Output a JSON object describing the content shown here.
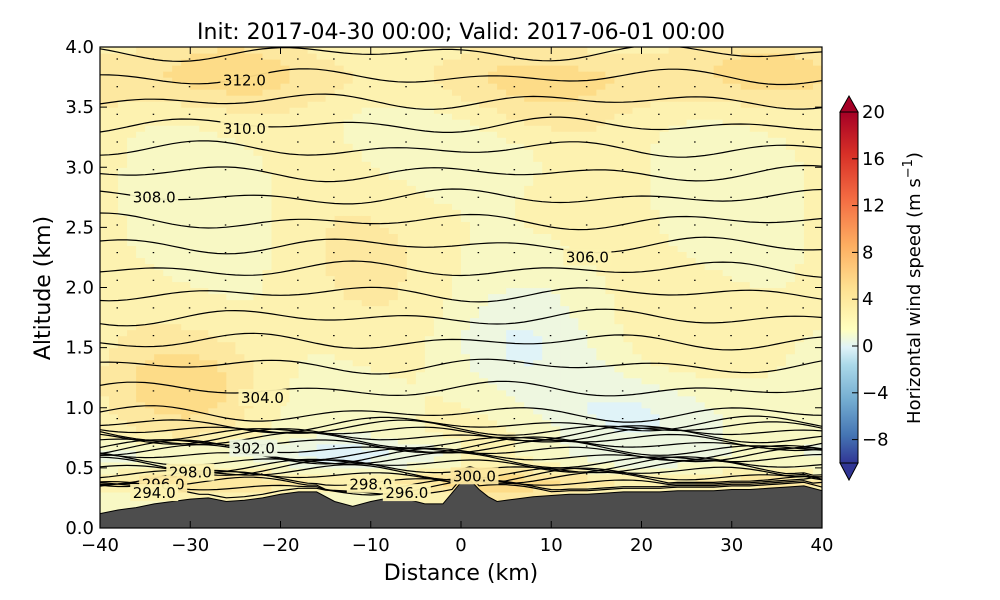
{
  "chart_data": {
    "type": "heatmap",
    "title": "Init: 2017-04-30 00:00; Valid: 2017-06-01 00:00",
    "xlabel": "Distance (km)",
    "ylabel": "Altitude (km)",
    "xlim": [
      -40,
      40
    ],
    "ylim": [
      0.0,
      4.0
    ],
    "x_ticks": [
      -40,
      -30,
      -20,
      -10,
      0,
      10,
      20,
      30,
      40
    ],
    "x_tick_labels": [
      "−40",
      "−30",
      "−20",
      "−10",
      "0",
      "10",
      "20",
      "30",
      "40"
    ],
    "y_ticks": [
      0.0,
      0.5,
      1.0,
      1.5,
      2.0,
      2.5,
      3.0,
      3.5,
      4.0
    ],
    "y_tick_labels": [
      "0.0",
      "0.5",
      "1.0",
      "1.5",
      "2.0",
      "2.5",
      "3.0",
      "3.5",
      "4.0"
    ],
    "colorbar": {
      "label": "Horizontal wind speed (m s",
      "label_exponent": "−1",
      "label_suffix": ")",
      "range": [
        -10,
        20
      ],
      "ticks": [
        20,
        16,
        12,
        8,
        4,
        0,
        -4,
        -8
      ],
      "tick_labels": [
        "20",
        "16",
        "12",
        "8",
        "4",
        "0",
        "−4",
        "−8"
      ],
      "colormap": "RdYlBu_r",
      "extend": "both"
    },
    "contour_labels": [
      {
        "text": "312.0",
        "x": -24,
        "y": 3.72
      },
      {
        "text": "310.0",
        "x": -24,
        "y": 3.32
      },
      {
        "text": "308.0",
        "x": -34,
        "y": 2.75
      },
      {
        "text": "306.0",
        "x": 14,
        "y": 2.25
      },
      {
        "text": "304.0",
        "x": -22,
        "y": 1.08
      },
      {
        "text": "302.0",
        "x": -23,
        "y": 0.66
      },
      {
        "text": "300.0",
        "x": 1.5,
        "y": 0.43
      },
      {
        "text": "298.0",
        "x": -30,
        "y": 0.46
      },
      {
        "text": "298.0",
        "x": -10,
        "y": 0.36
      },
      {
        "text": "296.0",
        "x": -33,
        "y": 0.36
      },
      {
        "text": "296.0",
        "x": -6,
        "y": 0.29
      },
      {
        "text": "294.0",
        "x": -34,
        "y": 0.29
      }
    ],
    "terrain": {
      "x": [
        -40,
        -38,
        -36,
        -34,
        -32,
        -30,
        -28,
        -26,
        -24,
        -22,
        -20,
        -18,
        -16,
        -14,
        -12,
        -10,
        -8,
        -6,
        -4,
        -2,
        0,
        1,
        2,
        3,
        4,
        6,
        8,
        10,
        12,
        14,
        16,
        18,
        20,
        22,
        24,
        26,
        28,
        30,
        32,
        34,
        36,
        38,
        40
      ],
      "y": [
        0.12,
        0.15,
        0.17,
        0.2,
        0.22,
        0.24,
        0.25,
        0.22,
        0.23,
        0.25,
        0.28,
        0.3,
        0.3,
        0.22,
        0.18,
        0.22,
        0.25,
        0.24,
        0.2,
        0.2,
        0.38,
        0.4,
        0.32,
        0.26,
        0.22,
        0.24,
        0.26,
        0.27,
        0.28,
        0.28,
        0.29,
        0.3,
        0.3,
        0.3,
        0.31,
        0.31,
        0.31,
        0.32,
        0.32,
        0.33,
        0.34,
        0.35,
        0.31
      ]
    },
    "grid": false,
    "legend": "none"
  }
}
